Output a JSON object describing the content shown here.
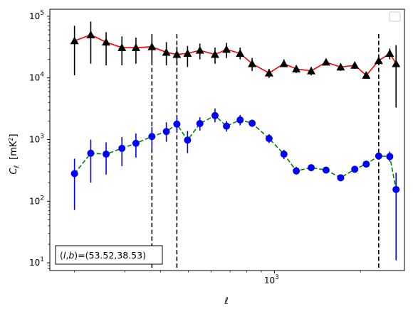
{
  "chart_data": {
    "type": "scatter",
    "xscale": "log",
    "yscale": "log",
    "xlabel": "ℓ",
    "ylabel_main": "C",
    "ylabel_sub": "ℓ",
    "ylabel_unit": "[mK",
    "ylabel_unit_sup": "2",
    "ylabel_unit_end": "]",
    "xlim": [
      164,
      2850
    ],
    "ylim": [
      7.5,
      130000
    ],
    "xticks": [
      {
        "value": 1000,
        "base": "10",
        "exp": "3"
      }
    ],
    "yticks": [
      {
        "value": 10,
        "base": "10",
        "exp": "1"
      },
      {
        "value": 100,
        "base": "10",
        "exp": "2"
      },
      {
        "value": 1000,
        "base": "10",
        "exp": "3"
      },
      {
        "value": 10000,
        "base": "10",
        "exp": "4"
      },
      {
        "value": 100000,
        "base": "10",
        "exp": "5"
      }
    ],
    "grid": false,
    "legend": "top-right (empty)",
    "vlines": [
      373,
      456,
      2316
    ],
    "annotation": {
      "text_pre": "(",
      "text_l": "l",
      "text_mid": ",",
      "text_b": "b",
      "text_post": ")=(53.52,38.53)",
      "position": "bottom-left"
    },
    "series": [
      {
        "marker": "triangle",
        "marker_color": "#000000",
        "line_color": "#ff0000",
        "line_style": "solid",
        "errorbar_color": "#000000",
        "x": [
          200,
          228,
          258,
          293,
          328,
          373,
          419,
          456,
          497,
          549,
          620,
          680,
          759,
          836,
          958,
          1080,
          1193,
          1345,
          1516,
          1705,
          1910,
          2095,
          2316,
          2532,
          2664
        ],
        "y": [
          40000,
          50000,
          38000,
          31000,
          31000,
          32000,
          26000,
          24000,
          25000,
          28000,
          24000,
          29000,
          25000,
          17000,
          12000,
          17000,
          14000,
          13000,
          18000,
          15000,
          16000,
          11000,
          19000,
          25000,
          17000
        ],
        "y_low": [
          11000,
          17000,
          16000,
          16000,
          17000,
          18000,
          16000,
          16000,
          15000,
          20000,
          17000,
          21000,
          20000,
          13000,
          10000,
          15000,
          12000,
          11000,
          16000,
          13000,
          14000,
          10000,
          16000,
          20000,
          3300
        ],
        "y_high": [
          70000,
          82000,
          55000,
          47000,
          45000,
          45000,
          38000,
          32000,
          33000,
          36000,
          31000,
          37000,
          31000,
          21000,
          14000,
          20000,
          16000,
          15000,
          20000,
          17000,
          18000,
          12500,
          22000,
          30000,
          34000
        ]
      },
      {
        "marker": "circle",
        "marker_color": "#0000ff",
        "line_color": "#008000",
        "line_style": "dashed",
        "errorbar_color": "#0000ff",
        "x": [
          200,
          228,
          258,
          293,
          328,
          373,
          419,
          456,
          497,
          549,
          620,
          680,
          759,
          836,
          958,
          1080,
          1193,
          1345,
          1516,
          1705,
          1910,
          2095,
          2316,
          2532,
          2664
        ],
        "y": [
          280,
          600,
          580,
          720,
          870,
          1120,
          1350,
          1780,
          980,
          1820,
          2450,
          1650,
          2080,
          1840,
          1040,
          580,
          310,
          350,
          320,
          240,
          330,
          400,
          540,
          530,
          155
        ],
        "y_low": [
          72,
          200,
          270,
          370,
          510,
          700,
          920,
          1300,
          600,
          1400,
          1900,
          1350,
          1700,
          1600,
          880,
          480,
          270,
          310,
          285,
          215,
          300,
          360,
          480,
          440,
          11
        ],
        "y_high": [
          490,
          1000,
          900,
          1100,
          1250,
          1600,
          1900,
          2350,
          1380,
          2300,
          3200,
          2000,
          2500,
          2100,
          1220,
          680,
          360,
          390,
          360,
          270,
          370,
          450,
          600,
          640,
          290
        ]
      }
    ]
  }
}
